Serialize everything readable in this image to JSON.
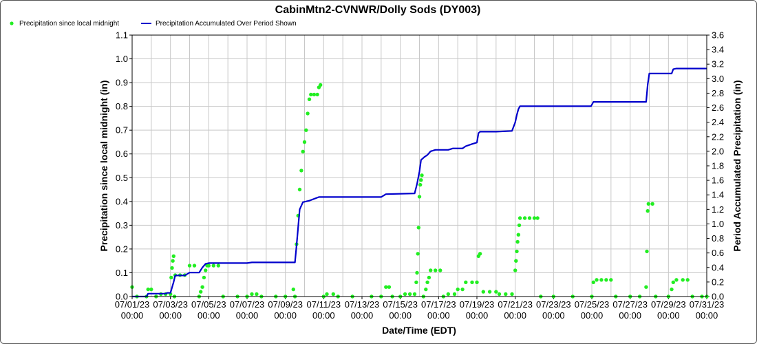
{
  "chart_data": {
    "type": "line",
    "title": "CabinMtn2-CVNWR/Dolly Sods (DY003)",
    "xlabel": "Date/Time (EDT)",
    "ylabel": "Precipitation since local midnight (in)",
    "y2label": "Period Accumulated Precipitation (in)",
    "xlim": [
      "2023-07-01 00:00",
      "2023-07-31 00:00"
    ],
    "ylim": [
      0,
      1.1
    ],
    "y2lim": [
      0,
      3.6
    ],
    "grid": true,
    "legend_position": "top-left",
    "x_tick_labels": [
      [
        "07/01/23",
        "00:00"
      ],
      [
        "07/03/23",
        "00:00"
      ],
      [
        "07/05/23",
        "00:00"
      ],
      [
        "07/07/23",
        "00:00"
      ],
      [
        "07/09/23",
        "00:00"
      ],
      [
        "07/11/23",
        "00:00"
      ],
      [
        "07/13/23",
        "00:00"
      ],
      [
        "07/15/23",
        "00:00"
      ],
      [
        "07/17/23",
        "00:00"
      ],
      [
        "07/19/23",
        "00:00"
      ],
      [
        "07/21/23",
        "00:00"
      ],
      [
        "07/23/23",
        "00:00"
      ],
      [
        "07/25/23",
        "00:00"
      ],
      [
        "07/27/23",
        "00:00"
      ],
      [
        "07/29/23",
        "00:00"
      ],
      [
        "07/31/23",
        "00:00"
      ]
    ],
    "y_ticks": [
      0.0,
      0.1,
      0.2,
      0.3,
      0.4,
      0.5,
      0.6,
      0.7,
      0.8,
      0.9,
      1.0,
      1.1
    ],
    "y2_ticks": [
      0.0,
      0.2,
      0.4,
      0.6,
      0.8,
      1.0,
      1.2,
      1.4,
      1.6,
      1.8,
      2.0,
      2.2,
      2.4,
      2.6,
      2.8,
      3.0,
      3.2,
      3.4,
      3.6
    ],
    "series": [
      {
        "name": "Precipitation since local midnight",
        "axis": "left",
        "style": "points",
        "color": "#22ee22",
        "points": [
          [
            "2023-07-01 00:00",
            0.04
          ],
          [
            "2023-07-01 06:00",
            0.0
          ],
          [
            "2023-07-01 18:00",
            0.0
          ],
          [
            "2023-07-01 20:00",
            0.03
          ],
          [
            "2023-07-02 00:00",
            0.03
          ],
          [
            "2023-07-02 06:00",
            0.0
          ],
          [
            "2023-07-02 12:00",
            0.01
          ],
          [
            "2023-07-02 18:00",
            0.01
          ],
          [
            "2023-07-03 00:00",
            0.01
          ],
          [
            "2023-07-03 01:00",
            0.08
          ],
          [
            "2023-07-03 02:00",
            0.12
          ],
          [
            "2023-07-03 03:00",
            0.15
          ],
          [
            "2023-07-03 04:00",
            0.17
          ],
          [
            "2023-07-03 05:00",
            0.0
          ],
          [
            "2023-07-03 06:00",
            0.09
          ],
          [
            "2023-07-03 12:00",
            0.09
          ],
          [
            "2023-07-03 18:00",
            0.09
          ],
          [
            "2023-07-04 00:00",
            0.13
          ],
          [
            "2023-07-04 06:00",
            0.13
          ],
          [
            "2023-07-04 12:00",
            0.0
          ],
          [
            "2023-07-04 14:00",
            0.02
          ],
          [
            "2023-07-04 16:00",
            0.04
          ],
          [
            "2023-07-04 18:00",
            0.08
          ],
          [
            "2023-07-04 20:00",
            0.11
          ],
          [
            "2023-07-04 22:00",
            0.13
          ],
          [
            "2023-07-05 00:00",
            0.13
          ],
          [
            "2023-07-05 06:00",
            0.13
          ],
          [
            "2023-07-05 12:00",
            0.13
          ],
          [
            "2023-07-05 18:00",
            0.0
          ],
          [
            "2023-07-06 12:00",
            0.0
          ],
          [
            "2023-07-07 00:00",
            0.0
          ],
          [
            "2023-07-07 06:00",
            0.01
          ],
          [
            "2023-07-07 12:00",
            0.01
          ],
          [
            "2023-07-07 18:00",
            0.0
          ],
          [
            "2023-07-08 12:00",
            0.0
          ],
          [
            "2023-07-09 00:00",
            0.0
          ],
          [
            "2023-07-09 10:00",
            0.03
          ],
          [
            "2023-07-09 12:00",
            0.0
          ],
          [
            "2023-07-09 14:00",
            0.22
          ],
          [
            "2023-07-09 16:00",
            0.34
          ],
          [
            "2023-07-09 18:00",
            0.45
          ],
          [
            "2023-07-09 20:00",
            0.53
          ],
          [
            "2023-07-09 22:00",
            0.61
          ],
          [
            "2023-07-10 00:00",
            0.65
          ],
          [
            "2023-07-10 02:00",
            0.7
          ],
          [
            "2023-07-10 04:00",
            0.77
          ],
          [
            "2023-07-10 06:00",
            0.83
          ],
          [
            "2023-07-10 08:00",
            0.85
          ],
          [
            "2023-07-10 12:00",
            0.85
          ],
          [
            "2023-07-10 16:00",
            0.85
          ],
          [
            "2023-07-10 18:00",
            0.88
          ],
          [
            "2023-07-10 20:00",
            0.89
          ],
          [
            "2023-07-11 00:00",
            0.0
          ],
          [
            "2023-07-11 04:00",
            0.01
          ],
          [
            "2023-07-11 12:00",
            0.01
          ],
          [
            "2023-07-11 18:00",
            0.0
          ],
          [
            "2023-07-12 12:00",
            0.0
          ],
          [
            "2023-07-13 12:00",
            0.0
          ],
          [
            "2023-07-14 00:00",
            0.0
          ],
          [
            "2023-07-14 06:00",
            0.04
          ],
          [
            "2023-07-14 10:00",
            0.04
          ],
          [
            "2023-07-14 14:00",
            0.0
          ],
          [
            "2023-07-15 00:00",
            0.0
          ],
          [
            "2023-07-15 06:00",
            0.01
          ],
          [
            "2023-07-15 12:00",
            0.01
          ],
          [
            "2023-07-15 18:00",
            0.01
          ],
          [
            "2023-07-15 20:00",
            0.06
          ],
          [
            "2023-07-15 21:00",
            0.1
          ],
          [
            "2023-07-15 22:00",
            0.18
          ],
          [
            "2023-07-15 23:00",
            0.29
          ],
          [
            "2023-07-16 00:00",
            0.42
          ],
          [
            "2023-07-16 01:00",
            0.47
          ],
          [
            "2023-07-16 02:00",
            0.49
          ],
          [
            "2023-07-16 03:00",
            0.51
          ],
          [
            "2023-07-16 05:00",
            0.0
          ],
          [
            "2023-07-16 08:00",
            0.03
          ],
          [
            "2023-07-16 10:00",
            0.06
          ],
          [
            "2023-07-16 12:00",
            0.08
          ],
          [
            "2023-07-16 14:00",
            0.11
          ],
          [
            "2023-07-16 20:00",
            0.11
          ],
          [
            "2023-07-17 02:00",
            0.11
          ],
          [
            "2023-07-17 06:00",
            0.0
          ],
          [
            "2023-07-17 12:00",
            0.01
          ],
          [
            "2023-07-17 20:00",
            0.01
          ],
          [
            "2023-07-18 00:00",
            0.03
          ],
          [
            "2023-07-18 06:00",
            0.03
          ],
          [
            "2023-07-18 10:00",
            0.06
          ],
          [
            "2023-07-18 18:00",
            0.06
          ],
          [
            "2023-07-19 00:00",
            0.06
          ],
          [
            "2023-07-19 02:00",
            0.17
          ],
          [
            "2023-07-19 04:00",
            0.18
          ],
          [
            "2023-07-19 08:00",
            0.02
          ],
          [
            "2023-07-19 16:00",
            0.02
          ],
          [
            "2023-07-20 00:00",
            0.02
          ],
          [
            "2023-07-20 04:00",
            0.01
          ],
          [
            "2023-07-20 12:00",
            0.01
          ],
          [
            "2023-07-20 20:00",
            0.01
          ],
          [
            "2023-07-21 00:00",
            0.11
          ],
          [
            "2023-07-21 01:00",
            0.15
          ],
          [
            "2023-07-21 02:00",
            0.19
          ],
          [
            "2023-07-21 03:00",
            0.23
          ],
          [
            "2023-07-21 04:00",
            0.26
          ],
          [
            "2023-07-21 05:00",
            0.3
          ],
          [
            "2023-07-21 06:00",
            0.33
          ],
          [
            "2023-07-21 12:00",
            0.33
          ],
          [
            "2023-07-21 18:00",
            0.33
          ],
          [
            "2023-07-22 00:00",
            0.33
          ],
          [
            "2023-07-22 04:00",
            0.33
          ],
          [
            "2023-07-22 08:00",
            0.0
          ],
          [
            "2023-07-23 00:00",
            0.0
          ],
          [
            "2023-07-24 00:00",
            0.0
          ],
          [
            "2023-07-25 00:00",
            0.0
          ],
          [
            "2023-07-25 02:00",
            0.06
          ],
          [
            "2023-07-25 06:00",
            0.07
          ],
          [
            "2023-07-25 12:00",
            0.07
          ],
          [
            "2023-07-25 18:00",
            0.07
          ],
          [
            "2023-07-26 00:00",
            0.07
          ],
          [
            "2023-07-26 06:00",
            0.0
          ],
          [
            "2023-07-27 00:00",
            0.0
          ],
          [
            "2023-07-27 12:00",
            0.0
          ],
          [
            "2023-07-27 20:00",
            0.04
          ],
          [
            "2023-07-27 21:00",
            0.19
          ],
          [
            "2023-07-27 22:00",
            0.36
          ],
          [
            "2023-07-27 23:00",
            0.39
          ],
          [
            "2023-07-28 04:00",
            0.39
          ],
          [
            "2023-07-28 08:00",
            0.0
          ],
          [
            "2023-07-29 00:00",
            0.0
          ],
          [
            "2023-07-29 04:00",
            0.03
          ],
          [
            "2023-07-29 06:00",
            0.06
          ],
          [
            "2023-07-29 10:00",
            0.07
          ],
          [
            "2023-07-29 18:00",
            0.07
          ],
          [
            "2023-07-30 00:00",
            0.07
          ],
          [
            "2023-07-30 06:00",
            0.0
          ],
          [
            "2023-07-30 18:00",
            0.0
          ],
          [
            "2023-07-31 00:00",
            0.0
          ]
        ]
      },
      {
        "name": "Precipitation Accumulated Over Period Shown",
        "axis": "right",
        "style": "step-line",
        "color": "#0000cc",
        "points": [
          [
            "2023-07-01 00:00",
            0.0
          ],
          [
            "2023-07-01 18:00",
            0.0
          ],
          [
            "2023-07-01 20:00",
            0.04
          ],
          [
            "2023-07-02 18:00",
            0.04
          ],
          [
            "2023-07-02 20:00",
            0.05
          ],
          [
            "2023-07-03 00:00",
            0.05
          ],
          [
            "2023-07-03 04:00",
            0.2
          ],
          [
            "2023-07-03 06:00",
            0.29
          ],
          [
            "2023-07-03 18:00",
            0.29
          ],
          [
            "2023-07-04 00:00",
            0.33
          ],
          [
            "2023-07-04 12:00",
            0.33
          ],
          [
            "2023-07-04 16:00",
            0.4
          ],
          [
            "2023-07-04 20:00",
            0.45
          ],
          [
            "2023-07-05 00:00",
            0.46
          ],
          [
            "2023-07-07 00:00",
            0.46
          ],
          [
            "2023-07-07 06:00",
            0.47
          ],
          [
            "2023-07-09 12:00",
            0.47
          ],
          [
            "2023-07-09 14:00",
            0.7
          ],
          [
            "2023-07-09 18:00",
            1.2
          ],
          [
            "2023-07-09 22:00",
            1.3
          ],
          [
            "2023-07-10 06:00",
            1.32
          ],
          [
            "2023-07-10 18:00",
            1.37
          ],
          [
            "2023-07-14 00:00",
            1.37
          ],
          [
            "2023-07-14 06:00",
            1.41
          ],
          [
            "2023-07-15 18:00",
            1.42
          ],
          [
            "2023-07-15 21:00",
            1.55
          ],
          [
            "2023-07-16 00:00",
            1.72
          ],
          [
            "2023-07-16 02:00",
            1.88
          ],
          [
            "2023-07-16 06:00",
            1.92
          ],
          [
            "2023-07-16 10:00",
            1.95
          ],
          [
            "2023-07-16 14:00",
            2.0
          ],
          [
            "2023-07-16 20:00",
            2.02
          ],
          [
            "2023-07-17 12:00",
            2.02
          ],
          [
            "2023-07-17 18:00",
            2.04
          ],
          [
            "2023-07-18 06:00",
            2.04
          ],
          [
            "2023-07-18 10:00",
            2.07
          ],
          [
            "2023-07-18 18:00",
            2.1
          ],
          [
            "2023-07-19 00:00",
            2.12
          ],
          [
            "2023-07-19 02:00",
            2.25
          ],
          [
            "2023-07-19 04:00",
            2.27
          ],
          [
            "2023-07-20 00:00",
            2.27
          ],
          [
            "2023-07-20 20:00",
            2.28
          ],
          [
            "2023-07-21 00:00",
            2.4
          ],
          [
            "2023-07-21 02:00",
            2.5
          ],
          [
            "2023-07-21 04:00",
            2.58
          ],
          [
            "2023-07-21 06:00",
            2.62
          ],
          [
            "2023-07-24 23:00",
            2.62
          ],
          [
            "2023-07-25 02:00",
            2.68
          ],
          [
            "2023-07-27 20:00",
            2.68
          ],
          [
            "2023-07-27 22:00",
            2.92
          ],
          [
            "2023-07-28 00:00",
            3.07
          ],
          [
            "2023-07-29 04:00",
            3.07
          ],
          [
            "2023-07-29 06:00",
            3.13
          ],
          [
            "2023-07-29 10:00",
            3.14
          ],
          [
            "2023-07-31 00:00",
            3.14
          ]
        ]
      }
    ]
  }
}
